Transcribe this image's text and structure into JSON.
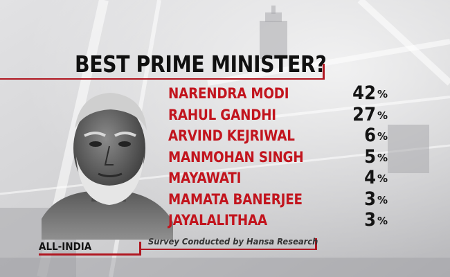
{
  "chart_data": {
    "type": "bar",
    "title": "BEST PRIME MINISTER?",
    "categories": [
      "NARENDRA MODI",
      "RAHUL GANDHI",
      "ARVIND KEJRIWAL",
      "MANMOHAN SINGH",
      "MAYAWATI",
      "MAMATA BANERJEE",
      "JAYALALITHAA"
    ],
    "values": [
      42,
      27,
      6,
      5,
      4,
      3,
      3
    ],
    "unit": "%",
    "region": "ALL-INDIA",
    "source": "Survey Conducted by Hansa Research"
  },
  "colors": {
    "accent": "#b01620",
    "name_text": "#c2141d",
    "value_text": "#141414",
    "background": "#c9c9cb"
  },
  "icons": {
    "portrait": "politician-portrait-icon"
  }
}
